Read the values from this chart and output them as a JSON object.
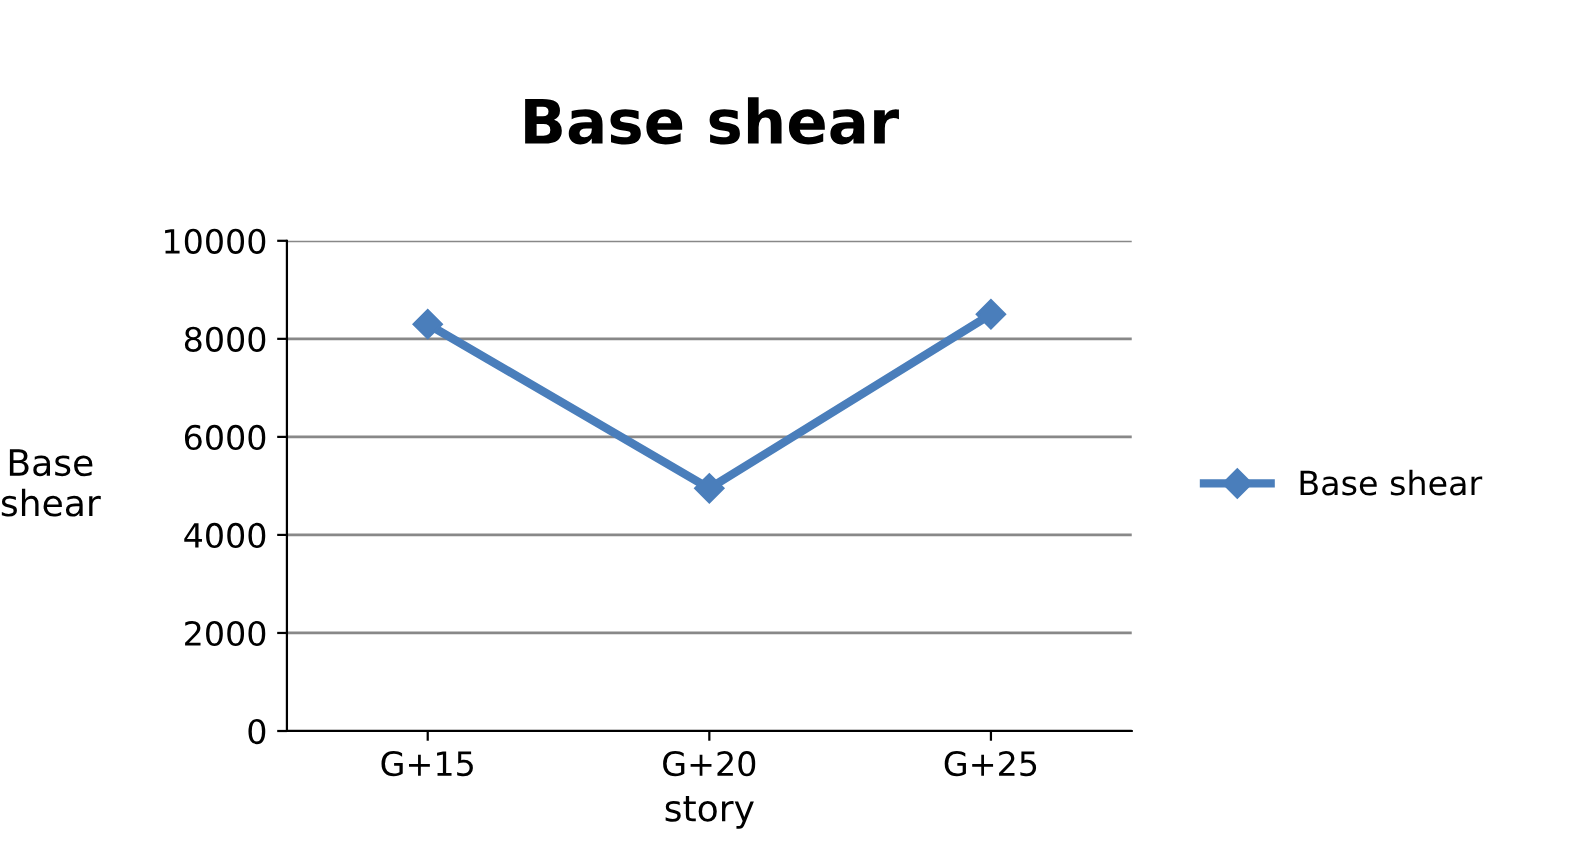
{
  "chart_data": {
    "type": "line",
    "title": "Base shear",
    "xlabel": "story",
    "ylabel": "Base\nshear",
    "categories": [
      "G+15",
      "G+20",
      "G+25"
    ],
    "series": [
      {
        "name": "Base shear",
        "color": "#4a7ebb",
        "values": [
          8300,
          4950,
          8500
        ]
      }
    ],
    "ylim": [
      0,
      10000
    ],
    "yticks": [
      0,
      2000,
      4000,
      6000,
      8000,
      10000
    ],
    "grid": "y",
    "legend": "right",
    "marker": "diamond",
    "line_style": "solid"
  }
}
